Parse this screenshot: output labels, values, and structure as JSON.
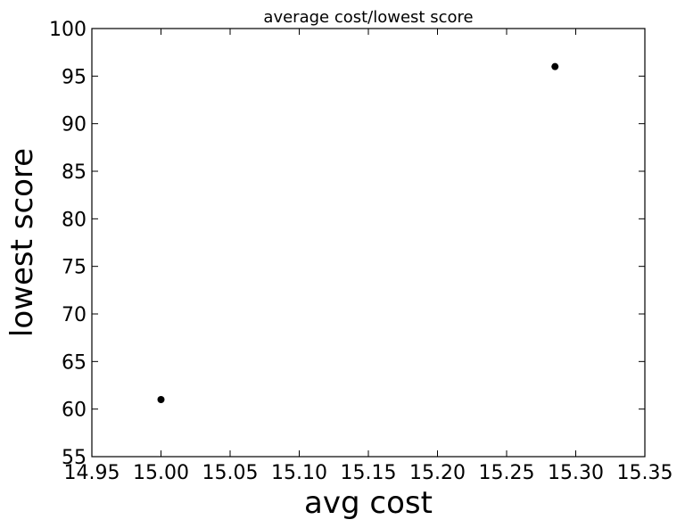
{
  "chart_data": {
    "type": "scatter",
    "title": "average cost/lowest score",
    "xlabel": "avg cost",
    "ylabel": "lowest score",
    "xlim": [
      14.95,
      15.35
    ],
    "ylim": [
      55,
      100
    ],
    "x_ticks": [
      "14.95",
      "15.00",
      "15.05",
      "15.10",
      "15.15",
      "15.20",
      "15.25",
      "15.30",
      "15.35"
    ],
    "y_ticks": [
      "55",
      "60",
      "65",
      "70",
      "75",
      "80",
      "85",
      "90",
      "95",
      "100"
    ],
    "grid": false,
    "marker_color": "#000000",
    "points": [
      {
        "x": 15.0,
        "y": 61
      },
      {
        "x": 15.285,
        "y": 96
      }
    ]
  }
}
